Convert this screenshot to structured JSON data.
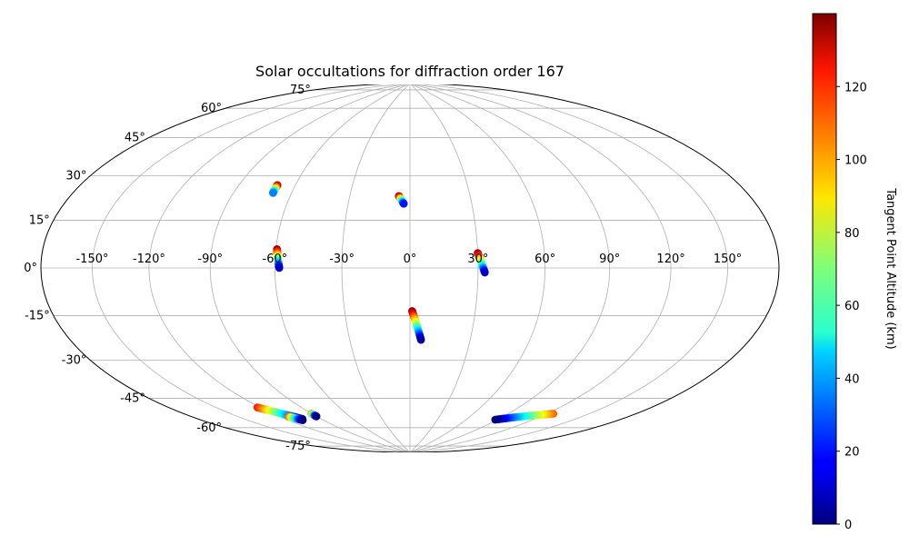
{
  "chart_data": {
    "type": "scatter",
    "projection": "hammer",
    "title": "Solar occultations for diffraction order 167",
    "colorbar": {
      "label": "Tangent Point Altitude (km)",
      "range": [
        0,
        140
      ],
      "ticks": [
        0,
        20,
        40,
        60,
        80,
        100,
        120
      ],
      "colormap": "jet"
    },
    "xticks": [
      -150,
      -120,
      -90,
      -60,
      -30,
      0,
      30,
      60,
      90,
      120,
      150
    ],
    "xtick_labels": [
      "-150°",
      "-120°",
      "-90°",
      "-60°",
      "-30°",
      "0°",
      "30°",
      "60°",
      "90°",
      "120°",
      "150°"
    ],
    "yticks": [
      -75,
      -60,
      -45,
      -30,
      -15,
      0,
      15,
      30,
      45,
      60,
      75
    ],
    "ytick_labels": [
      "-75°",
      "-60°",
      "-45°",
      "-30°",
      "-15°",
      "0°",
      "15°",
      "30°",
      "45°",
      "60°",
      "75°"
    ],
    "ylim": [
      -75,
      75
    ],
    "grid": true,
    "colors": {
      "grid": "#b0b0b0",
      "frame": "#000000"
    },
    "tracks": [
      {
        "lon_start": -69.5,
        "lat_start": 35.5,
        "lon_end": -69.5,
        "lat_end": 32,
        "alt_start": 140,
        "alt_end": 35
      },
      {
        "lon_start": -59.5,
        "lat_start": 8,
        "lon_end": -58,
        "lat_end": 0,
        "alt_start": 140,
        "alt_end": 10
      },
      {
        "lon_start": -5.5,
        "lat_start": 32,
        "lon_end": -3,
        "lat_end": 28.5,
        "alt_start": 140,
        "alt_end": 20
      },
      {
        "lon_start": 30,
        "lat_start": 6.5,
        "lon_end": 33,
        "lat_end": -2,
        "alt_start": 140,
        "alt_end": 10
      },
      {
        "lon_start": 1,
        "lat_start": -19,
        "lon_end": 5.5,
        "lat_end": -32,
        "alt_start": 140,
        "alt_end": 5
      },
      {
        "lon_start": 125,
        "lat_start": -61,
        "lon_end": 88,
        "lat_end": -68,
        "alt_start": 110,
        "alt_end": 0
      },
      {
        "lon_start": -122,
        "lat_start": -58,
        "lon_end": -106,
        "lat_end": -66,
        "alt_start": 120,
        "alt_end": 0
      },
      {
        "lon_start": -113,
        "lat_start": -64,
        "lon_end": -108,
        "lat_end": -66.5,
        "alt_start": 110,
        "alt_end": 0
      },
      {
        "lon_start": -90,
        "lat_start": -64.5,
        "lon_end": -90,
        "lat_end": -66,
        "alt_start": 110,
        "alt_end": 0
      }
    ]
  }
}
